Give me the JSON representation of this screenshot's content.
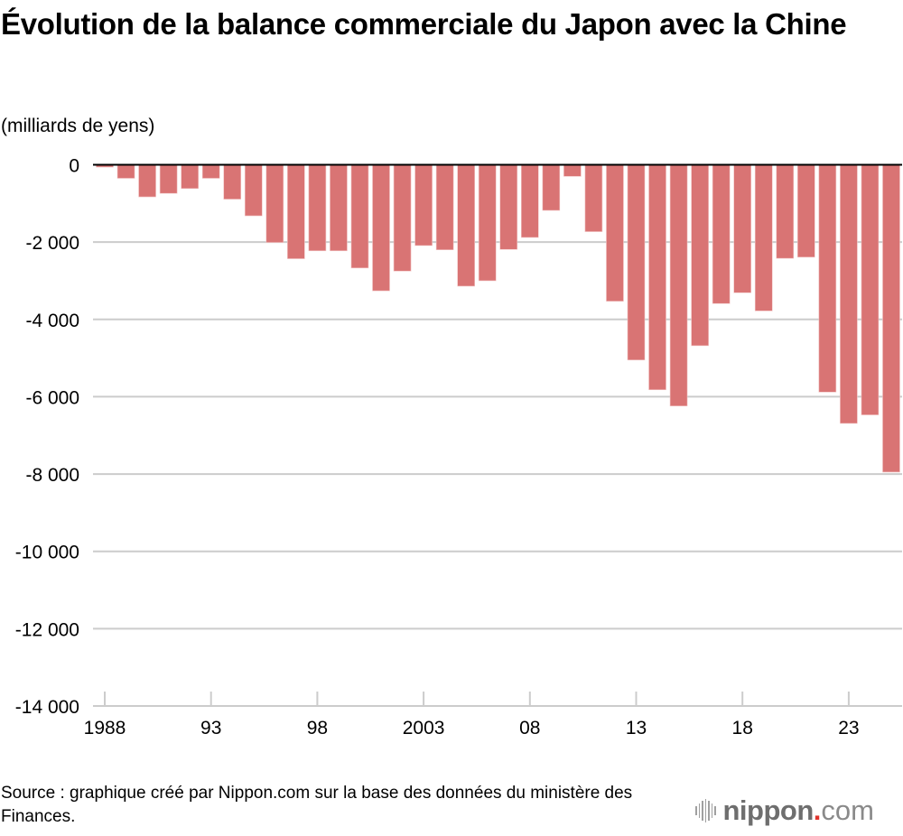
{
  "header": {
    "title": "Évolution de la balance commerciale du Japon avec la Chine",
    "unit": "(milliards de yens)"
  },
  "footer": {
    "source": "Source : graphique créé par Nippon.com sur la base des données du ministère des Finances.",
    "logo": {
      "name": "nippon",
      "dot": ".",
      "tld": "com",
      "accent_color": "#e0332c"
    }
  },
  "chart_data": {
    "type": "bar",
    "title": "Évolution de la balance commerciale du Japon avec la Chine",
    "ylabel": "(milliards de yens)",
    "xlabel": "",
    "ylim": [
      -14000,
      0
    ],
    "yticks": [
      0,
      -2000,
      -4000,
      -6000,
      -8000,
      -10000,
      -12000,
      -14000
    ],
    "ytick_labels": [
      "0",
      "-2 000",
      "-4 000",
      "-6 000",
      "-8 000",
      "-10 000",
      "-12 000",
      "-14 000"
    ],
    "xtick_years": [
      1988,
      1993,
      1998,
      2003,
      2008,
      2013,
      2018,
      2023
    ],
    "xtick_labels": [
      "1988",
      "93",
      "98",
      "2003",
      "08",
      "13",
      "18",
      "23"
    ],
    "grid": true,
    "bar_color": "#d97474",
    "categories": [
      1988,
      1989,
      1990,
      1991,
      1992,
      1993,
      1994,
      1995,
      1996,
      1997,
      1998,
      1999,
      2000,
      2001,
      2002,
      2003,
      2004,
      2005,
      2006,
      2007,
      2008,
      2009,
      2010,
      2011,
      2012,
      2013,
      2014,
      2015,
      2016,
      2017,
      2018,
      2019,
      2020,
      2021,
      2022,
      2023,
      2024,
      2025
    ],
    "values": [
      -60,
      -350,
      -830,
      -740,
      -615,
      -350,
      -890,
      -1320,
      -2010,
      -2430,
      -2225,
      -2225,
      -2670,
      -3260,
      -2750,
      -2090,
      -2200,
      -3140,
      -3000,
      -2190,
      -1880,
      -1180,
      -300,
      -1730,
      -3530,
      -5050,
      -5820,
      -6240,
      -4680,
      -3590,
      -3310,
      -3780,
      -2420,
      -2390,
      -5880,
      -6690,
      -6470,
      -7950
    ]
  }
}
